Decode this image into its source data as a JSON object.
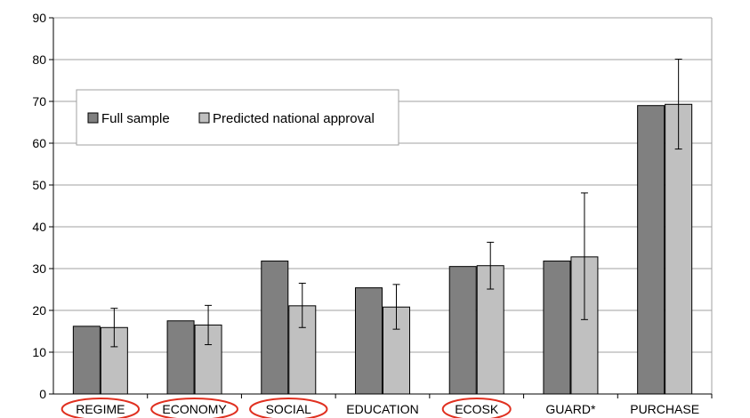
{
  "chart_data": {
    "type": "bar",
    "title": "",
    "xlabel": "",
    "ylabel": "",
    "ylim": [
      0,
      90
    ],
    "yticks": [
      0,
      10,
      20,
      30,
      40,
      50,
      60,
      70,
      80,
      90
    ],
    "grid": true,
    "legend_position": "upper-left",
    "categories": [
      "REGIME",
      "ECONOMY",
      "SOCIAL",
      "EDUCATION",
      "ECOSK",
      "GUARD*",
      "PURCHASE"
    ],
    "circled_categories": [
      "REGIME",
      "ECONOMY",
      "SOCIAL",
      "ECOSK"
    ],
    "series": [
      {
        "name": "Full sample",
        "color": "#808080",
        "values": [
          16.2,
          17.5,
          31.8,
          25.4,
          30.5,
          31.8,
          69.0
        ]
      },
      {
        "name": "Predicted national approval",
        "color": "#c0c0c0",
        "values": [
          15.9,
          16.5,
          21.1,
          20.8,
          30.7,
          32.8,
          69.3
        ],
        "error_low": [
          11.3,
          11.8,
          15.9,
          15.5,
          25.1,
          17.8,
          58.6
        ],
        "error_high": [
          20.5,
          21.2,
          26.5,
          26.2,
          36.3,
          48.1,
          80.1
        ]
      }
    ],
    "highlight_color": "#e03020"
  }
}
